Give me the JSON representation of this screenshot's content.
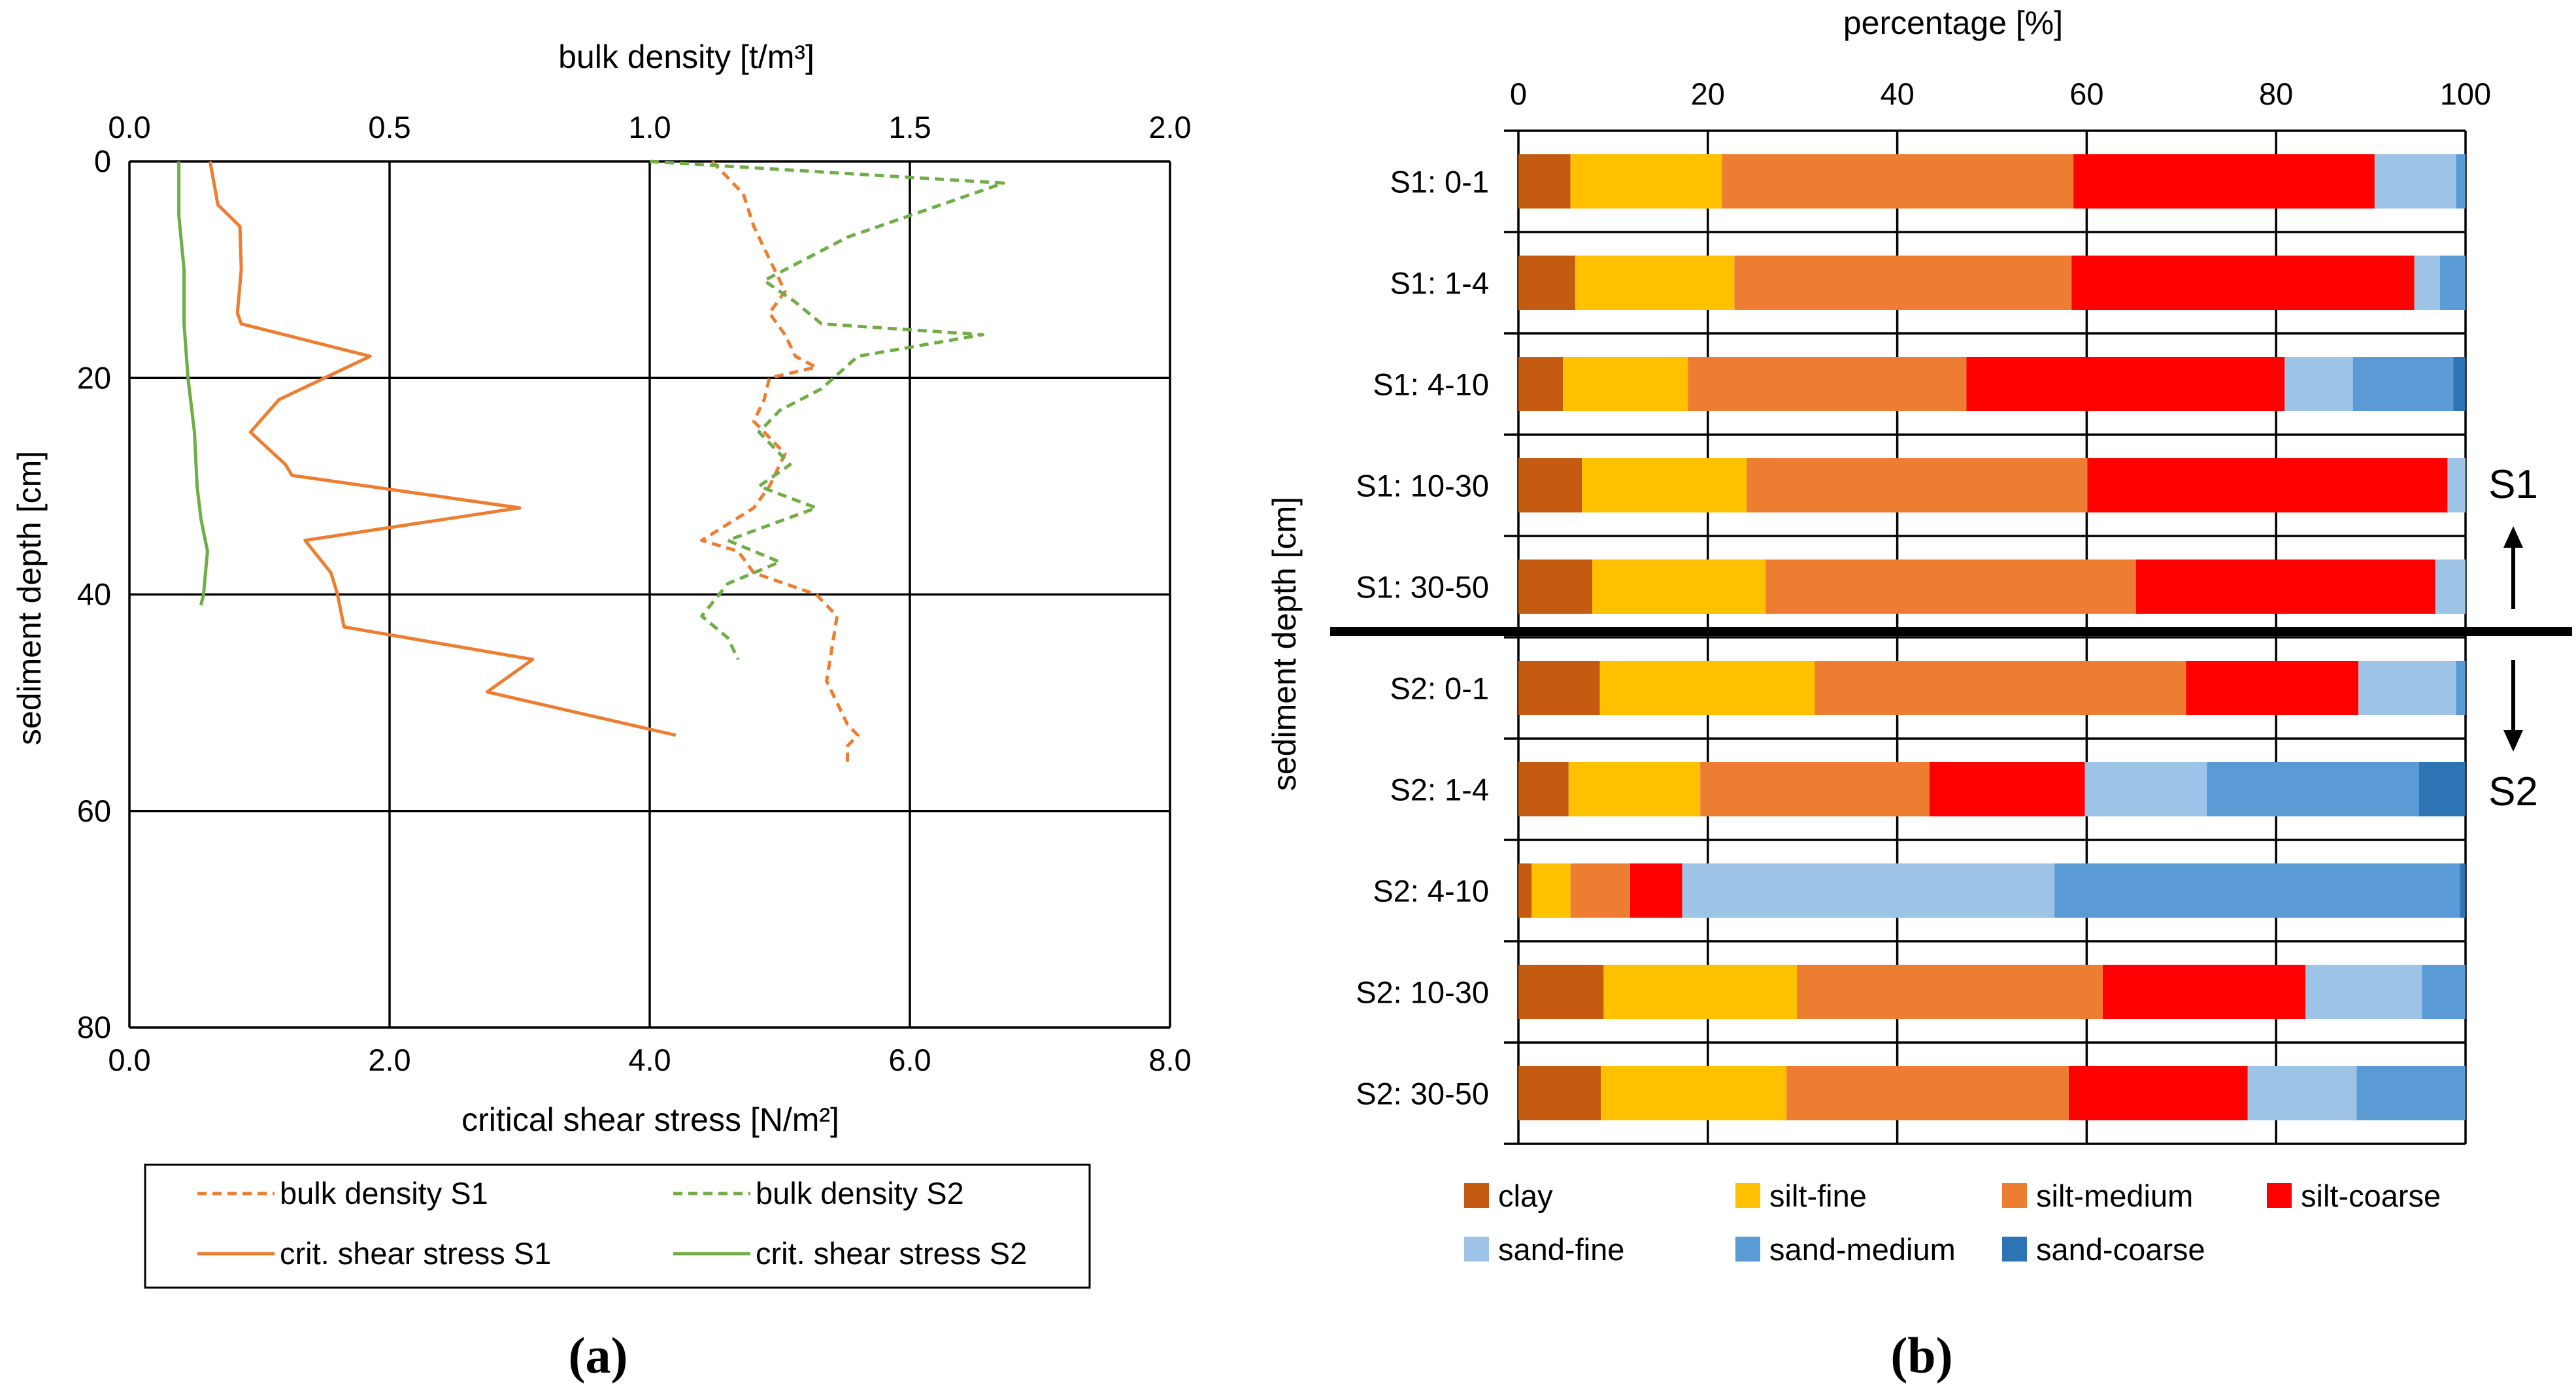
{
  "chart_data": [
    {
      "type": "line",
      "panel_label": "(a)",
      "top_axis": {
        "label": "bulk density [t/m³]",
        "range": [
          0,
          2
        ],
        "ticks": [
          "0.0",
          "0.5",
          "1.0",
          "1.5",
          "2.0"
        ],
        "tick_values": [
          0,
          0.5,
          1.0,
          1.5,
          2.0
        ]
      },
      "bottom_axis": {
        "label": "critical shear stress [N/m²]",
        "range": [
          0,
          8
        ],
        "ticks": [
          "0.0",
          "2.0",
          "4.0",
          "6.0",
          "8.0"
        ],
        "tick_values": [
          0,
          2,
          4,
          6,
          8
        ]
      },
      "y_axis": {
        "label": "sediment depth [cm]",
        "range": [
          0,
          80
        ],
        "inverted": true,
        "ticks": [
          "0",
          "20",
          "40",
          "60",
          "80"
        ],
        "tick_values": [
          0,
          20,
          40,
          60,
          80
        ]
      },
      "grid": true,
      "legend_position": "bottom",
      "series": [
        {
          "name": "bulk density S1",
          "axis": "top",
          "color": "#ED7D31",
          "dashed": true,
          "points": [
            [
              1.12,
              0
            ],
            [
              1.18,
              3
            ],
            [
              1.2,
              6
            ],
            [
              1.23,
              9
            ],
            [
              1.26,
              12
            ],
            [
              1.23,
              14
            ],
            [
              1.26,
              16
            ],
            [
              1.28,
              18
            ],
            [
              1.32,
              19
            ],
            [
              1.23,
              20
            ],
            [
              1.22,
              22
            ],
            [
              1.2,
              24
            ],
            [
              1.26,
              27
            ],
            [
              1.23,
              30
            ],
            [
              1.2,
              32
            ],
            [
              1.1,
              35
            ],
            [
              1.17,
              36
            ],
            [
              1.2,
              38
            ],
            [
              1.32,
              40
            ],
            [
              1.36,
              42
            ],
            [
              1.35,
              45
            ],
            [
              1.34,
              48
            ],
            [
              1.36,
              50
            ],
            [
              1.38,
              52
            ],
            [
              1.4,
              53
            ],
            [
              1.38,
              54
            ],
            [
              1.38,
              56
            ]
          ]
        },
        {
          "name": "bulk density S2",
          "axis": "top",
          "color": "#70AD47",
          "dashed": true,
          "points": [
            [
              1.0,
              0
            ],
            [
              1.68,
              2
            ],
            [
              1.5,
              5
            ],
            [
              1.38,
              7
            ],
            [
              1.3,
              9
            ],
            [
              1.22,
              11
            ],
            [
              1.28,
              13
            ],
            [
              1.33,
              15
            ],
            [
              1.64,
              16
            ],
            [
              1.4,
              18
            ],
            [
              1.33,
              21
            ],
            [
              1.25,
              23
            ],
            [
              1.21,
              25
            ],
            [
              1.27,
              28
            ],
            [
              1.21,
              30
            ],
            [
              1.32,
              32
            ],
            [
              1.15,
              35
            ],
            [
              1.25,
              37
            ],
            [
              1.15,
              39
            ],
            [
              1.1,
              42
            ],
            [
              1.15,
              44
            ],
            [
              1.17,
              46
            ]
          ]
        },
        {
          "name": "crit. shear stress S1",
          "axis": "bottom",
          "color": "#ED7D31",
          "dashed": false,
          "points": [
            [
              0.62,
              0
            ],
            [
              0.68,
              4
            ],
            [
              0.85,
              6
            ],
            [
              0.86,
              10
            ],
            [
              0.83,
              14
            ],
            [
              0.86,
              15
            ],
            [
              1.85,
              18
            ],
            [
              1.15,
              22
            ],
            [
              0.93,
              25
            ],
            [
              1.2,
              28
            ],
            [
              1.25,
              29
            ],
            [
              3.0,
              32
            ],
            [
              1.35,
              35
            ],
            [
              1.55,
              38
            ],
            [
              1.6,
              40
            ],
            [
              1.65,
              43
            ],
            [
              3.1,
              46
            ],
            [
              2.75,
              49
            ],
            [
              4.2,
              53
            ]
          ]
        },
        {
          "name": "crit. shear stress S2",
          "axis": "bottom",
          "color": "#70AD47",
          "dashed": false,
          "points": [
            [
              0.38,
              0
            ],
            [
              0.38,
              5
            ],
            [
              0.42,
              10
            ],
            [
              0.42,
              15
            ],
            [
              0.45,
              20
            ],
            [
              0.5,
              25
            ],
            [
              0.52,
              30
            ],
            [
              0.55,
              33
            ],
            [
              0.6,
              36
            ],
            [
              0.57,
              40
            ],
            [
              0.55,
              41
            ]
          ]
        }
      ]
    },
    {
      "type": "bar",
      "stacked": true,
      "orientation": "horizontal",
      "panel_label": "(b)",
      "x_axis": {
        "label": "percentage [%]",
        "range": [
          0,
          100
        ],
        "ticks": [
          "0",
          "20",
          "40",
          "60",
          "80",
          "100"
        ],
        "tick_values": [
          0,
          20,
          40,
          60,
          80,
          100
        ],
        "position": "top"
      },
      "y_axis": {
        "label": "sediment depth [cm]"
      },
      "grid": true,
      "legend_position": "bottom",
      "categories": [
        "S1: 0-1",
        "S1: 1-4",
        "S1: 4-10",
        "S1: 10-30",
        "S1: 30-50",
        "S2: 0-1",
        "S2: 1-4",
        "S2: 4-10",
        "S2: 10-30",
        "S2: 30-50"
      ],
      "series": [
        {
          "name": "clay",
          "color": "#C55A11",
          "values": [
            5.5,
            6,
            4.7,
            6.7,
            7.8,
            8.6,
            5.3,
            1.4,
            9,
            8.7
          ]
        },
        {
          "name": "silt-fine",
          "color": "#FFC000",
          "values": [
            16,
            16.8,
            13.2,
            17.4,
            18.3,
            22.7,
            13.9,
            4.1,
            20.4,
            19.6
          ]
        },
        {
          "name": "silt-medium",
          "color": "#ED7D31",
          "values": [
            37.1,
            35.6,
            29.4,
            36,
            39.1,
            39.2,
            24.2,
            6.3,
            32.3,
            29.8
          ]
        },
        {
          "name": "silt-coarse",
          "color": "#FF0000",
          "values": [
            31.8,
            36.2,
            33.6,
            38,
            31.6,
            18.2,
            16.4,
            5.5,
            21.4,
            18.9
          ]
        },
        {
          "name": "sand-fine",
          "color": "#9DC3E6",
          "values": [
            8.6,
            2.7,
            7.2,
            1.9,
            3.2,
            10.3,
            12.9,
            39.3,
            12.3,
            11.5
          ]
        },
        {
          "name": "sand-medium",
          "color": "#5B9BD5",
          "values": [
            1.0,
            2.7,
            10.6,
            0,
            0,
            1.0,
            22.4,
            42.8,
            4.6,
            11.5
          ]
        },
        {
          "name": "sand-coarse",
          "color": "#2E75B6",
          "values": [
            0,
            0,
            1.3,
            0,
            0,
            0,
            4.9,
            0.6,
            0,
            0
          ]
        }
      ],
      "annotations": {
        "upper_group": "S1",
        "lower_group": "S2"
      }
    }
  ]
}
